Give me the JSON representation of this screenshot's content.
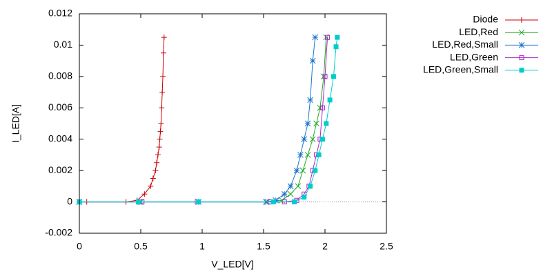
{
  "chart_data": {
    "type": "line",
    "x_label": "V_LED[V]",
    "y_label": "I_LED[A]",
    "xlim": [
      0,
      2.5
    ],
    "xticks": [
      0,
      0.5,
      1,
      1.5,
      2,
      2.5
    ],
    "ylim": [
      -0.002,
      0.012
    ],
    "yticks": [
      -0.002,
      0,
      0.002,
      0.004,
      0.006,
      0.008,
      0.01,
      0.012
    ],
    "grid": false,
    "zero_axis": true,
    "legend": "right top outside",
    "series": [
      {
        "name": "Diode",
        "color": "#cc0000",
        "marker": "plus",
        "x": [
          0,
          0.06,
          0.38,
          0.47,
          0.53,
          0.58,
          0.6,
          0.62,
          0.63,
          0.64,
          0.65,
          0.655,
          0.66,
          0.665,
          0.67,
          0.675,
          0.68,
          0.685,
          0.69
        ],
        "values": [
          0,
          0,
          0,
          0.0001,
          0.0005,
          0.001,
          0.0015,
          0.002,
          0.0025,
          0.003,
          0.0035,
          0.004,
          0.0045,
          0.005,
          0.006,
          0.007,
          0.008,
          0.0095,
          0.0105
        ]
      },
      {
        "name": "LED,Red",
        "color": "#22aa22",
        "marker": "cross",
        "x": [
          0,
          0.5,
          0.97,
          1.53,
          1.65,
          1.72,
          1.78,
          1.82,
          1.86,
          1.9,
          1.93,
          1.96,
          1.99,
          2.01
        ],
        "values": [
          0,
          0,
          0,
          0,
          0.0001,
          0.0005,
          0.001,
          0.002,
          0.003,
          0.004,
          0.005,
          0.006,
          0.008,
          0.0105
        ]
      },
      {
        "name": "LED,Red,Small",
        "color": "#1874cd",
        "marker": "star",
        "x": [
          0,
          0.49,
          0.97,
          1.52,
          1.6,
          1.67,
          1.72,
          1.77,
          1.8,
          1.83,
          1.86,
          1.88,
          1.9,
          1.92
        ],
        "values": [
          0,
          0,
          0,
          0,
          0.0001,
          0.0005,
          0.001,
          0.002,
          0.003,
          0.004,
          0.005,
          0.0065,
          0.009,
          0.0105
        ]
      },
      {
        "name": "LED,Green",
        "color": "#aa22cc",
        "marker": "square",
        "x": [
          0,
          0.51,
          0.96,
          1.55,
          1.67,
          1.77,
          1.83,
          1.87,
          1.9,
          1.93,
          1.96,
          1.98,
          2.0,
          2.02
        ],
        "values": [
          0,
          0,
          0,
          0,
          0,
          0.0001,
          0.0005,
          0.001,
          0.002,
          0.003,
          0.004,
          0.006,
          0.008,
          0.0105
        ]
      },
      {
        "name": "LED,Green,Small",
        "color": "#00cccc",
        "marker": "filled-square",
        "x": [
          0,
          0.48,
          0.97,
          1.58,
          1.75,
          1.83,
          1.88,
          1.92,
          1.95,
          1.98,
          2.01,
          2.04,
          2.07,
          2.09,
          2.1
        ],
        "values": [
          0,
          0,
          0,
          0,
          0,
          0.0003,
          0.001,
          0.002,
          0.003,
          0.004,
          0.005,
          0.0065,
          0.008,
          0.0099,
          0.0105
        ]
      }
    ]
  }
}
